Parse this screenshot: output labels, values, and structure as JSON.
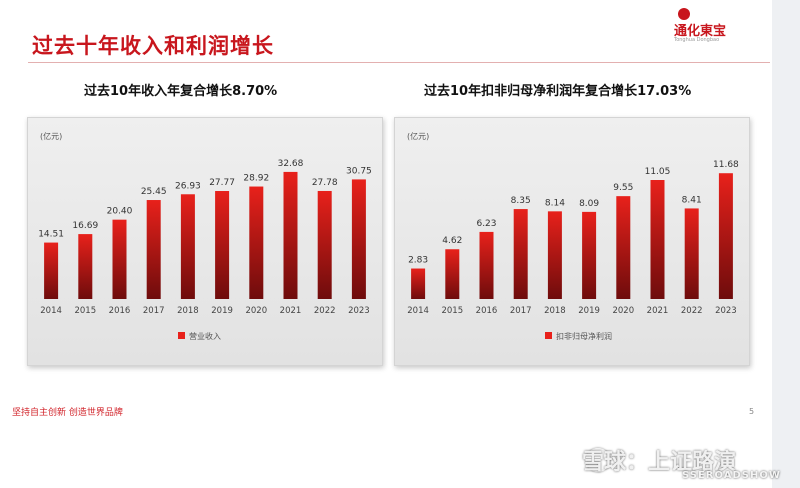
{
  "page": {
    "title": "过去十年收入和利润增长",
    "logo_name": "通化東宝",
    "logo_sub": "Tonghua Dongbao",
    "footer": "坚持自主创新 创造世界品牌",
    "page_number": "5",
    "watermark_cn": "雪球：上证路演",
    "watermark_en": "SSEROADSHOW"
  },
  "colors": {
    "accent": "#c8161d",
    "bar_top": "#e8211b",
    "bar_bottom": "#6e0c0c"
  },
  "chart_data": [
    {
      "type": "bar",
      "title": "过去10年收入年复合增长8.70%",
      "unit_label": "(亿元)",
      "legend": "营业收入",
      "legend_position": "bottom",
      "categories": [
        "2014",
        "2015",
        "2016",
        "2017",
        "2018",
        "2019",
        "2020",
        "2021",
        "2022",
        "2023"
      ],
      "series": [
        {
          "name": "营业收入",
          "values": [
            14.51,
            16.69,
            20.4,
            25.45,
            26.93,
            27.77,
            28.92,
            32.68,
            27.78,
            30.75
          ]
        }
      ],
      "value_labels": [
        "14.51",
        "16.69",
        "20.40",
        "25.45",
        "26.93",
        "27.77",
        "28.92",
        "32.68",
        "27.78",
        "30.75"
      ],
      "ylim": [
        0,
        36
      ]
    },
    {
      "type": "bar",
      "title": "过去10年扣非归母净利润年复合增长17.03%",
      "unit_label": "(亿元)",
      "legend": "扣非归母净利润",
      "legend_position": "bottom",
      "categories": [
        "2014",
        "2015",
        "2016",
        "2017",
        "2018",
        "2019",
        "2020",
        "2021",
        "2022",
        "2023"
      ],
      "series": [
        {
          "name": "扣非归母净利润",
          "values": [
            2.83,
            4.62,
            6.23,
            8.35,
            8.14,
            8.09,
            9.55,
            11.05,
            8.41,
            11.68
          ]
        }
      ],
      "value_labels": [
        "2.83",
        "4.62",
        "6.23",
        "8.35",
        "8.14",
        "8.09",
        "9.55",
        "11.05",
        "8.41",
        "11.68"
      ],
      "ylim": [
        0,
        13
      ]
    }
  ]
}
